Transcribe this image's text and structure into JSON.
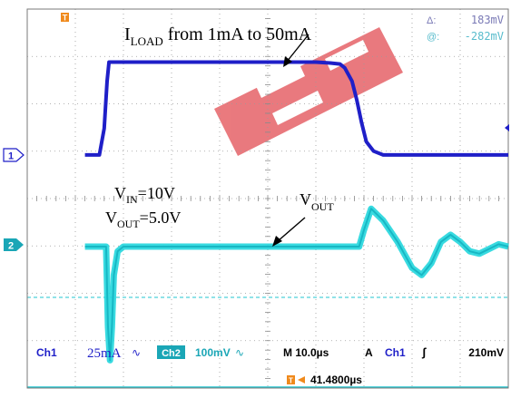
{
  "chart_data": {
    "type": "line",
    "title": "",
    "time_unit": "µs",
    "time_per_division": 10,
    "annotations": {
      "iload": {
        "main": "I",
        "sub": "LOAD",
        "rest": " from 1mA to 50mA"
      },
      "vin": {
        "main": "V",
        "sub": "IN",
        "rest": "=10V"
      },
      "vout_cond": {
        "main": "V",
        "sub": "OUT",
        "rest": "=5.0V"
      },
      "vout_trace": {
        "main": "V",
        "sub": "OUT"
      }
    },
    "series": [
      {
        "name": "",
        "channel": "Ch1",
        "color": "#1f1fc8",
        "unit": "mA",
        "scale_per_division": 25,
        "marker_label": "1",
        "x": [
          -38.0,
          -35.0,
          -34.0,
          -33.4,
          -33.0,
          10.0,
          13.0,
          15.0,
          16.0,
          17.5,
          18.5,
          19.5,
          20.5,
          22.0,
          24.0,
          50.0
        ],
        "values": [
          1,
          1,
          15,
          40,
          50,
          50,
          49.5,
          49,
          47,
          40,
          30,
          18,
          8,
          3,
          1,
          1
        ]
      },
      {
        "name": "",
        "channel": "Ch2",
        "color": "#22d6dd",
        "unit": "mV",
        "scale_per_division": 100,
        "marker_label": "2",
        "x": [
          -38.0,
          -33.6,
          -33.2,
          -32.8,
          -32.4,
          -32.0,
          -31.2,
          -30.0,
          19.0,
          20.0,
          21.5,
          24.0,
          27.0,
          30.0,
          32.0,
          34.0,
          36.0,
          38.0,
          40.0,
          42.0,
          44.0,
          46.0,
          48.0,
          50.0
        ],
        "values": [
          0,
          0,
          -170,
          -240,
          -170,
          -60,
          -10,
          0,
          0,
          35,
          80,
          55,
          10,
          -45,
          -60,
          -35,
          10,
          25,
          10,
          -10,
          -15,
          -5,
          5,
          0
        ]
      }
    ],
    "readouts": {
      "cursor_a_symbol": "Δ:",
      "cursor_a": "183mV",
      "cursor_b_symbol": "@:",
      "cursor_b": "-282mV"
    },
    "status": {
      "ch1_label": "Ch1",
      "ch1_scale": "25mA",
      "ch1_coupling": "∿",
      "ch2_label": "Ch2",
      "ch2_scale": "100mV",
      "ch2_coupling": "∿",
      "timebase": "M 10.0µs",
      "trigger_mode": "A",
      "trigger_source": "Ch1",
      "trigger_slope": "ʃ",
      "trigger_level": "210mV",
      "trigger_position": "41.4800µs",
      "trigger_marker": "T"
    }
  }
}
